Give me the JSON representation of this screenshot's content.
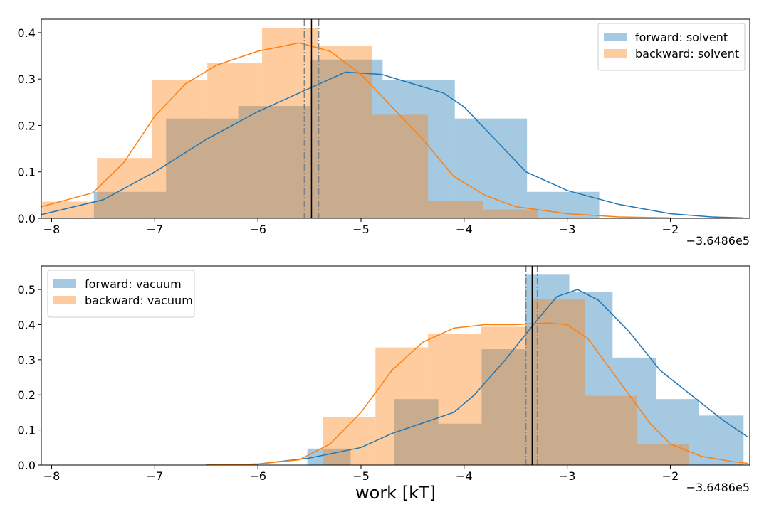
{
  "chart_data": [
    {
      "type": "histogram",
      "offset_label": "−3.6486e5",
      "xlim": [
        -8.1,
        -1.23
      ],
      "ylim": [
        0,
        0.429
      ],
      "xticks": [
        {
          "value": -8,
          "label": "−8"
        },
        {
          "value": -7,
          "label": "−7"
        },
        {
          "value": -6,
          "label": "−6"
        },
        {
          "value": -5,
          "label": "−5"
        },
        {
          "value": -4,
          "label": "−4"
        },
        {
          "value": -3,
          "label": "−3"
        },
        {
          "value": -2,
          "label": "−2"
        }
      ],
      "yticks": [
        {
          "value": 0,
          "label": "0.0"
        },
        0.1,
        0.2,
        0.3,
        0.4
      ],
      "legend": "upper right",
      "series": [
        {
          "name": "forward: solvent",
          "color": "#1f77b4",
          "bins": [
            -7.59,
            -6.89,
            -6.19,
            -5.49,
            -4.79,
            -4.09,
            -3.39,
            -2.69
          ],
          "values": [
            0.057,
            0.215,
            0.242,
            0.342,
            0.298,
            0.215,
            0.057
          ],
          "kde_x": [
            -8.1,
            -7.5,
            -7.0,
            -6.5,
            -6.0,
            -5.5,
            -5.15,
            -4.8,
            -4.5,
            -4.2,
            -4.0,
            -3.7,
            -3.4,
            -3.0,
            -2.5,
            -2.0,
            -1.6,
            -1.3
          ],
          "kde_y": [
            0.008,
            0.04,
            0.1,
            0.17,
            0.23,
            0.28,
            0.315,
            0.31,
            0.29,
            0.27,
            0.24,
            0.17,
            0.1,
            0.06,
            0.03,
            0.01,
            0.003,
            0.001
          ]
        },
        {
          "name": "backward: solvent",
          "color": "#ff7f0e",
          "bins": [
            -8.09,
            -7.56,
            -7.03,
            -6.49,
            -5.96,
            -5.42,
            -4.89,
            -4.35,
            -3.82,
            -3.28
          ],
          "values": [
            0.036,
            0.13,
            0.298,
            0.335,
            0.41,
            0.372,
            0.223,
            0.037,
            0.019
          ],
          "kde_x": [
            -8.1,
            -7.6,
            -7.3,
            -7.0,
            -6.7,
            -6.4,
            -6.0,
            -5.6,
            -5.3,
            -5.0,
            -4.7,
            -4.4,
            -4.1,
            -3.8,
            -3.5,
            -3.0,
            -2.5,
            -2.0
          ],
          "kde_y": [
            0.025,
            0.055,
            0.12,
            0.22,
            0.29,
            0.33,
            0.36,
            0.378,
            0.36,
            0.31,
            0.24,
            0.17,
            0.09,
            0.05,
            0.025,
            0.01,
            0.003,
            0.001
          ]
        }
      ],
      "vlines": [
        {
          "x": -5.48,
          "color": "#000000",
          "style": "solid"
        },
        {
          "x": -5.55,
          "color": "#808080",
          "style": "dashdot"
        },
        {
          "x": -5.41,
          "color": "#808080",
          "style": "dashdot"
        }
      ]
    },
    {
      "type": "histogram",
      "offset_label": "−3.6486e5",
      "xlabel": "work [kT]",
      "xlim": [
        -8.1,
        -1.23
      ],
      "ylim": [
        0,
        0.567
      ],
      "xticks": [
        {
          "value": -8,
          "label": "−8"
        },
        {
          "value": -7,
          "label": "−7"
        },
        {
          "value": -6,
          "label": "−6"
        },
        {
          "value": -5,
          "label": "−5"
        },
        {
          "value": -4,
          "label": "−4"
        },
        {
          "value": -3,
          "label": "−3"
        },
        {
          "value": -2,
          "label": "−2"
        }
      ],
      "yticks": [
        {
          "value": 0,
          "label": "0.0"
        },
        0.1,
        0.2,
        0.3,
        0.4,
        0.5
      ],
      "legend": "upper left",
      "series": [
        {
          "name": "forward: vacuum",
          "color": "#1f77b4",
          "bins": [
            -5.52,
            -5.1,
            -4.68,
            -4.25,
            -3.83,
            -3.41,
            -2.98,
            -2.56,
            -2.14,
            -1.72,
            -1.29
          ],
          "values": [
            0.047,
            0,
            0.188,
            0.118,
            0.33,
            0.542,
            0.494,
            0.306,
            0.188,
            0.141
          ],
          "kde_x": [
            -6.5,
            -6.0,
            -5.5,
            -5.0,
            -4.7,
            -4.4,
            -4.1,
            -3.9,
            -3.6,
            -3.3,
            -3.1,
            -2.9,
            -2.7,
            -2.4,
            -2.1,
            -1.8,
            -1.5,
            -1.25
          ],
          "kde_y": [
            0,
            0.003,
            0.02,
            0.05,
            0.09,
            0.12,
            0.15,
            0.2,
            0.3,
            0.41,
            0.48,
            0.5,
            0.47,
            0.38,
            0.27,
            0.2,
            0.13,
            0.08
          ]
        },
        {
          "name": "backward: vacuum",
          "color": "#ff7f0e",
          "bins": [
            -5.37,
            -4.86,
            -4.35,
            -3.84,
            -3.33,
            -2.83,
            -2.32,
            -1.82
          ],
          "values": [
            0.137,
            0.335,
            0.374,
            0.394,
            0.473,
            0.197,
            0.059
          ],
          "kde_x": [
            -6.5,
            -6.0,
            -5.6,
            -5.3,
            -5.0,
            -4.7,
            -4.4,
            -4.1,
            -3.8,
            -3.5,
            -3.2,
            -3.0,
            -2.8,
            -2.5,
            -2.2,
            -2.0,
            -1.7,
            -1.4,
            -1.25
          ],
          "kde_y": [
            0,
            0.003,
            0.015,
            0.06,
            0.15,
            0.27,
            0.35,
            0.39,
            0.4,
            0.4,
            0.405,
            0.4,
            0.36,
            0.24,
            0.12,
            0.06,
            0.025,
            0.01,
            0.005
          ]
        }
      ],
      "vlines": [
        {
          "x": -3.34,
          "color": "#000000",
          "style": "solid"
        },
        {
          "x": -3.4,
          "color": "#808080",
          "style": "dashdot"
        },
        {
          "x": -3.29,
          "color": "#808080",
          "style": "dashdot"
        }
      ]
    }
  ]
}
